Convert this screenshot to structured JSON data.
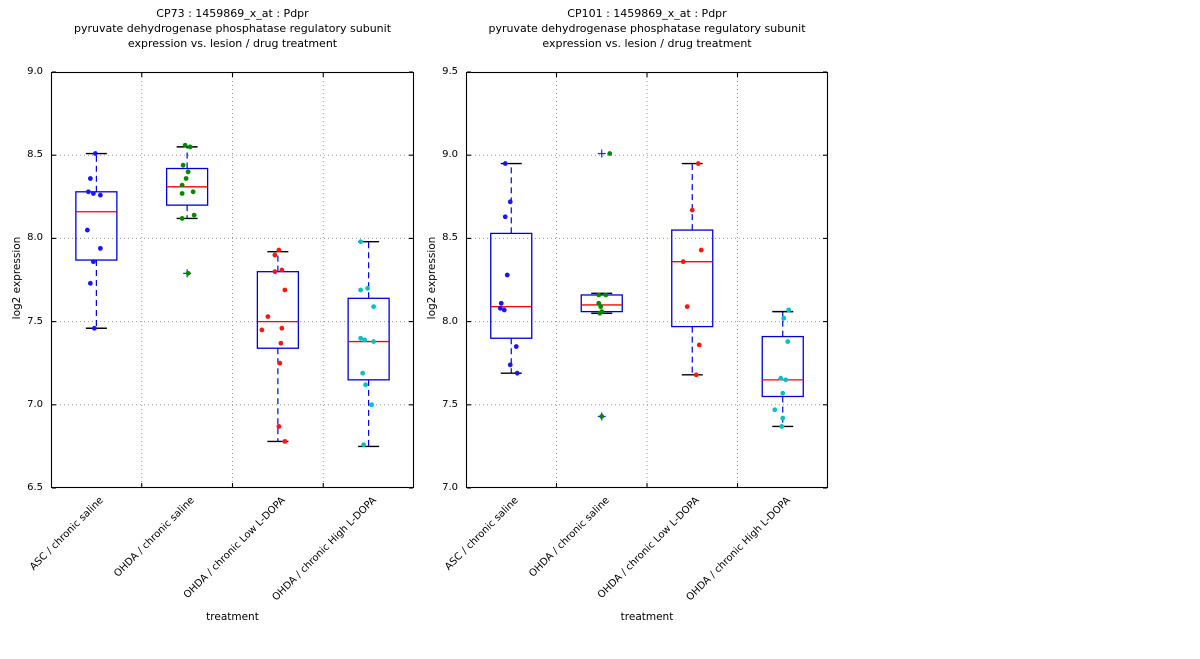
{
  "figure": {
    "background": "#ffffff"
  },
  "colors": {
    "box_edge": "#0000dd",
    "median": "#ff0000",
    "whisker": "#0000dd",
    "cap": "#000000",
    "grid": "#999999",
    "outlier_marker": "#2222ee",
    "axis": "#000000"
  },
  "chart_data": [
    {
      "type": "boxplot",
      "title_lines": [
        "CP73 : 1459869_x_at : Pdpr",
        "pyruvate dehydrogenase phosphatase regulatory subunit",
        "expression vs. lesion / drug treatment"
      ],
      "ylabel": "log2 expression",
      "xlabel": "treatment",
      "ylim": [
        6.5,
        9.0
      ],
      "yticks": [
        6.5,
        7.0,
        7.5,
        8.0,
        8.5,
        9.0
      ],
      "grid": true,
      "categories": [
        "ASC / chronic saline",
        "OHDA / chronic saline",
        "OHDA / chronic Low L-DOPA",
        "OHDA / chronic High L-DOPA"
      ],
      "groups": [
        {
          "category": "ASC / chronic saline",
          "color": "#1616ff",
          "box": {
            "q1": 7.87,
            "median": 8.16,
            "q3": 8.28,
            "whisker_low": 7.46,
            "whisker_high": 8.51
          },
          "outliers": [],
          "points": [
            [
              8.51,
              -1
            ],
            [
              8.36,
              -6
            ],
            [
              8.28,
              -8
            ],
            [
              8.27,
              -3
            ],
            [
              8.26,
              4
            ],
            [
              8.05,
              -9
            ],
            [
              7.94,
              4
            ],
            [
              7.86,
              -3
            ],
            [
              7.73,
              -6
            ],
            [
              7.46,
              -2
            ]
          ]
        },
        {
          "category": "OHDA / chronic saline",
          "color": "#008a00",
          "box": {
            "q1": 8.2,
            "median": 8.31,
            "q3": 8.42,
            "whisker_low": 8.12,
            "whisker_high": 8.55
          },
          "outliers": [
            7.79
          ],
          "points": [
            [
              8.56,
              -2
            ],
            [
              8.55,
              3
            ],
            [
              8.44,
              -4
            ],
            [
              8.4,
              1
            ],
            [
              8.36,
              -1
            ],
            [
              8.32,
              -5
            ],
            [
              8.28,
              6
            ],
            [
              8.27,
              -5
            ],
            [
              8.14,
              7
            ],
            [
              8.12,
              -5
            ],
            [
              7.79,
              1
            ]
          ]
        },
        {
          "category": "OHDA / chronic Low L-DOPA",
          "color": "#ff1414",
          "box": {
            "q1": 7.34,
            "median": 7.5,
            "q3": 7.8,
            "whisker_low": 6.78,
            "whisker_high": 7.92
          },
          "outliers": [],
          "points": [
            [
              7.93,
              1
            ],
            [
              7.9,
              -3
            ],
            [
              7.81,
              4
            ],
            [
              7.8,
              -3
            ],
            [
              7.69,
              7
            ],
            [
              7.53,
              -10
            ],
            [
              7.46,
              4
            ],
            [
              7.45,
              -16
            ],
            [
              7.37,
              3
            ],
            [
              7.25,
              2
            ],
            [
              6.87,
              1
            ],
            [
              6.78,
              7
            ]
          ]
        },
        {
          "category": "OHDA / chronic High L-DOPA",
          "color": "#00c4c4",
          "box": {
            "q1": 7.15,
            "median": 7.38,
            "q3": 7.64,
            "whisker_low": 6.75,
            "whisker_high": 7.98
          },
          "outliers": [],
          "points": [
            [
              7.98,
              -8
            ],
            [
              7.7,
              -1
            ],
            [
              7.69,
              -8
            ],
            [
              7.59,
              5
            ],
            [
              7.4,
              -8
            ],
            [
              7.39,
              -4
            ],
            [
              7.38,
              5
            ],
            [
              7.19,
              -6
            ],
            [
              7.12,
              -3
            ],
            [
              7.0,
              3
            ],
            [
              6.76,
              -5
            ]
          ]
        }
      ]
    },
    {
      "type": "boxplot",
      "title_lines": [
        "CP101 : 1459869_x_at : Pdpr",
        "pyruvate dehydrogenase phosphatase regulatory subunit",
        "expression vs. lesion / drug treatment"
      ],
      "ylabel": "log2 expression",
      "xlabel": "treatment",
      "ylim": [
        7.0,
        9.5
      ],
      "yticks": [
        7.0,
        7.5,
        8.0,
        8.5,
        9.0,
        9.5
      ],
      "grid": true,
      "categories": [
        "ASC / chronic saline",
        "OHDA / chronic saline",
        "OHDA / chronic Low L-DOPA",
        "OHDA / chronic High L-DOPA"
      ],
      "groups": [
        {
          "category": "ASC / chronic saline",
          "color": "#1616ff",
          "box": {
            "q1": 7.9,
            "median": 8.09,
            "q3": 8.53,
            "whisker_low": 7.69,
            "whisker_high": 8.95
          },
          "outliers": [],
          "points": [
            [
              8.95,
              -6
            ],
            [
              8.72,
              -1
            ],
            [
              8.63,
              -6
            ],
            [
              8.28,
              -4
            ],
            [
              8.11,
              -10
            ],
            [
              8.08,
              -11
            ],
            [
              8.07,
              -7
            ],
            [
              7.85,
              5
            ],
            [
              7.74,
              -1
            ],
            [
              7.69,
              6
            ]
          ]
        },
        {
          "category": "OHDA / chronic saline",
          "color": "#008a00",
          "box": {
            "q1": 8.06,
            "median": 8.1,
            "q3": 8.16,
            "whisker_low": 8.05,
            "whisker_high": 8.17
          },
          "outliers": [
            9.01,
            7.43
          ],
          "points": [
            [
              9.01,
              8
            ],
            [
              8.16,
              -3
            ],
            [
              8.16,
              4
            ],
            [
              8.11,
              -3
            ],
            [
              8.09,
              -1
            ],
            [
              8.06,
              0
            ],
            [
              8.05,
              -2
            ],
            [
              7.43,
              0
            ]
          ]
        },
        {
          "category": "OHDA / chronic Low L-DOPA",
          "color": "#ff1414",
          "box": {
            "q1": 7.97,
            "median": 8.36,
            "q3": 8.55,
            "whisker_low": 7.68,
            "whisker_high": 8.95
          },
          "outliers": [],
          "points": [
            [
              8.95,
              6
            ],
            [
              8.67,
              0
            ],
            [
              8.43,
              9
            ],
            [
              8.36,
              -9
            ],
            [
              8.09,
              -5
            ],
            [
              7.86,
              7
            ],
            [
              7.68,
              4
            ]
          ]
        },
        {
          "category": "OHDA / chronic High L-DOPA",
          "color": "#00c4c4",
          "box": {
            "q1": 7.55,
            "median": 7.65,
            "q3": 7.91,
            "whisker_low": 7.37,
            "whisker_high": 8.06
          },
          "outliers": [],
          "points": [
            [
              8.07,
              6
            ],
            [
              8.02,
              1
            ],
            [
              7.88,
              5
            ],
            [
              7.66,
              -2
            ],
            [
              7.65,
              3
            ],
            [
              7.57,
              0
            ],
            [
              7.47,
              -8
            ],
            [
              7.42,
              0
            ],
            [
              7.37,
              -1
            ]
          ]
        }
      ]
    }
  ]
}
